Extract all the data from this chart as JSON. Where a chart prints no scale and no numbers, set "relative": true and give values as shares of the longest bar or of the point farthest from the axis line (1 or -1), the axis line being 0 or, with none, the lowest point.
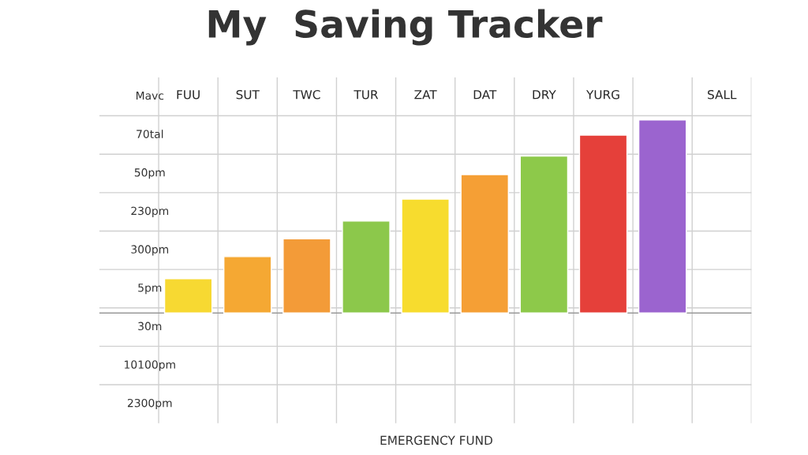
{
  "chart_data": {
    "type": "bar",
    "title": "My  Saving Tracker",
    "categories": [
      "FUU",
      "SUT",
      "TWC",
      "TUR",
      "ZAT",
      "DAT",
      "DRY",
      "YURG",
      null,
      "SALL"
    ],
    "values": [
      0.178,
      0.292,
      0.384,
      0.476,
      0.59,
      0.717,
      0.813,
      0.921,
      1,
      null
    ],
    "colors": [
      "#f7d932",
      "#f5a833",
      "#f39b38",
      "#8cc84b",
      "#f7dc2e",
      "#f59f35",
      "#8dc94a",
      "#e5403a",
      "#9b64cf",
      "#ffffff"
    ],
    "relative": true,
    "grid": true,
    "annotations": [
      "Mavc",
      "70tal",
      "50pm",
      "230pm",
      "300pm",
      "5pm",
      "30m",
      "10100pm",
      "2300pm",
      "EMERGENCY FUND"
    ]
  }
}
